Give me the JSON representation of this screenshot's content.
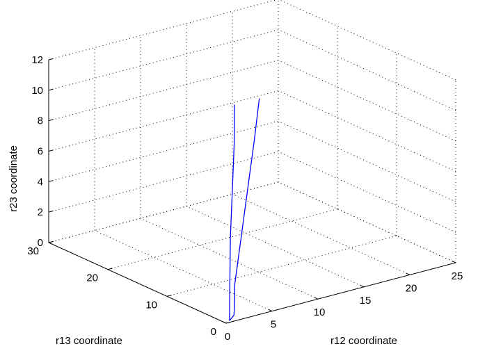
{
  "chart_data": {
    "type": "line",
    "projection": "3d",
    "xlabel": "r12 coordinate",
    "ylabel": "r13 coordinate",
    "zlabel": "r23 coordinate",
    "xlim": [
      0,
      25
    ],
    "ylim": [
      0,
      30
    ],
    "zlim": [
      0,
      12
    ],
    "xticks": [
      0,
      5,
      10,
      15,
      20,
      25
    ],
    "yticks": [
      0,
      10,
      20,
      30
    ],
    "zticks": [
      0,
      2,
      4,
      6,
      8,
      10,
      12
    ],
    "grid": true,
    "line_color": "#0000ff",
    "series": [
      {
        "points": [
          {
            "x": 0.5,
            "y": 0.2,
            "z": 0.05
          },
          {
            "x": 1.5,
            "y": 1.0,
            "z": 0.12
          },
          {
            "x": 2.2,
            "y": 2.0,
            "z": 0.5
          },
          {
            "x": 3.0,
            "y": 3.2,
            "z": 1.5
          },
          {
            "x": 5.0,
            "y": 5.2,
            "z": 4.0
          },
          {
            "x": 7.0,
            "y": 7.2,
            "z": 6.5
          },
          {
            "x": 9.0,
            "y": 9.2,
            "z": 9.0
          },
          {
            "x": 10.5,
            "y": 10.7,
            "z": 11.2
          }
        ]
      },
      {
        "points": [
          {
            "x": 0.5,
            "y": 0.2,
            "z": 0.05
          },
          {
            "x": 2.2,
            "y": 2.8,
            "z": 1.3
          },
          {
            "x": 4.0,
            "y": 5.5,
            "z": 4.0
          },
          {
            "x": 5.5,
            "y": 7.5,
            "z": 6.5
          },
          {
            "x": 7.0,
            "y": 9.5,
            "z": 9.0
          },
          {
            "x": 8.3,
            "y": 11.5,
            "z": 11.0
          }
        ]
      }
    ]
  }
}
